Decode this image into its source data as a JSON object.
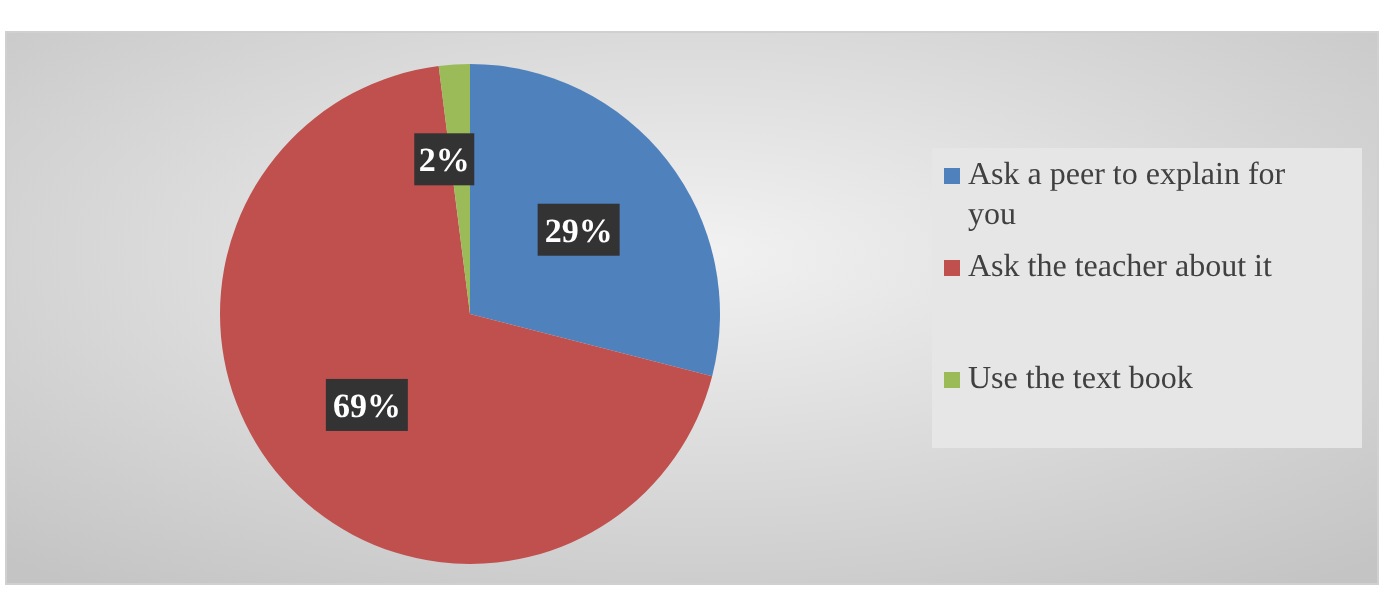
{
  "chart_data": {
    "type": "pie",
    "categories": [
      "Ask a peer to explain for you",
      "Ask the teacher about it",
      "Use the text book"
    ],
    "values": [
      29,
      69,
      2
    ],
    "colors": [
      "#4f81bd",
      "#c0504d",
      "#9bbb59"
    ],
    "value_labels": [
      "29%",
      "69%",
      "2%"
    ],
    "legend": "right"
  }
}
